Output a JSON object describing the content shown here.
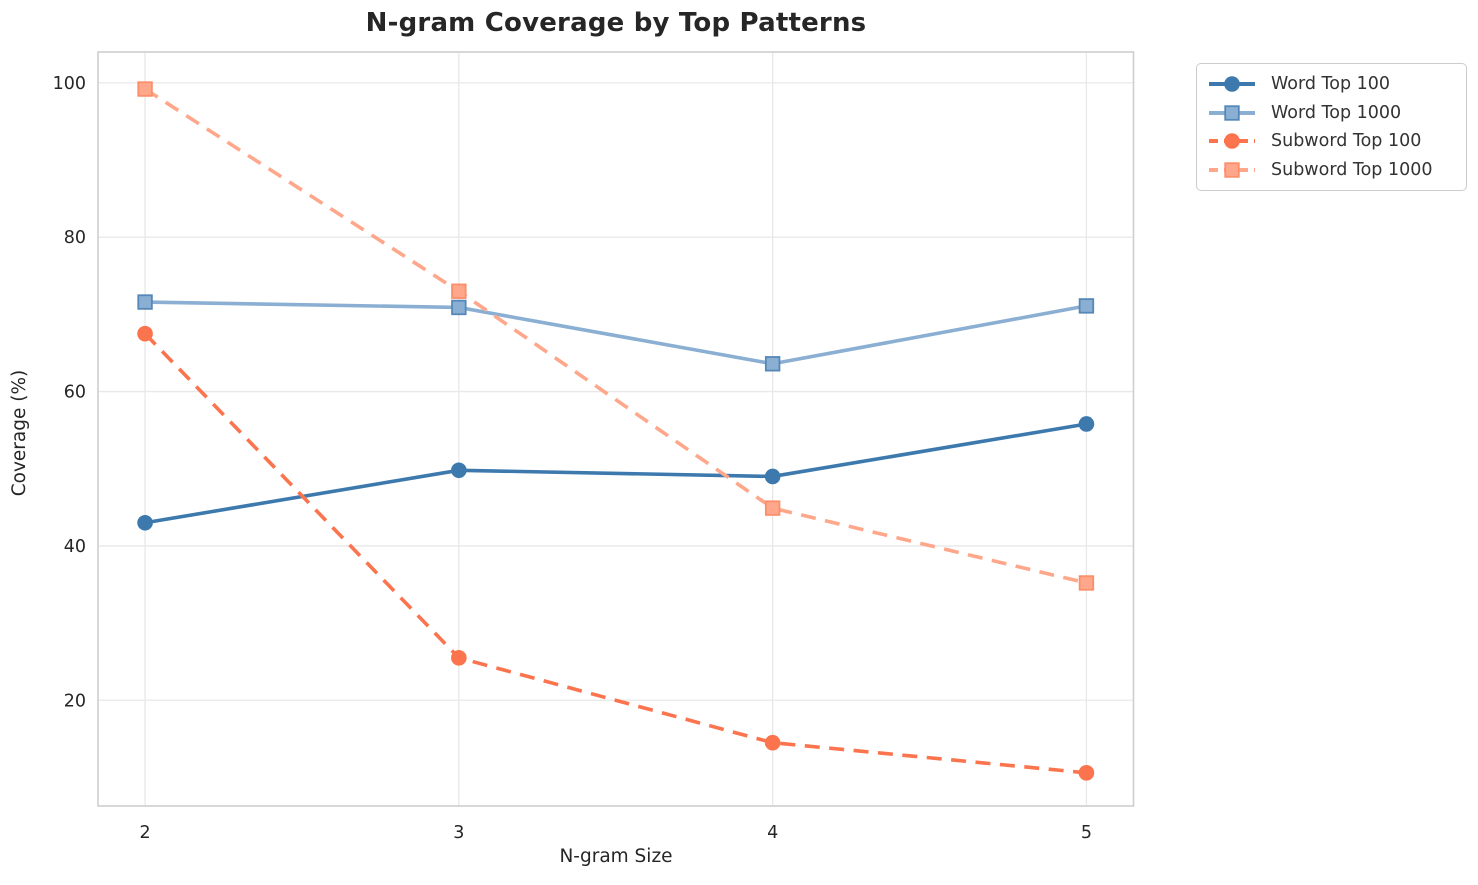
{
  "chart_data": {
    "type": "line",
    "title": "N-gram Coverage by Top Patterns",
    "xlabel": "N-gram Size",
    "ylabel": "Coverage (%)",
    "x": [
      2,
      3,
      4,
      5
    ],
    "x_tick_labels": [
      "2",
      "3",
      "4",
      "5"
    ],
    "y_ticks": [
      20,
      40,
      60,
      80,
      100
    ],
    "y_tick_labels": [
      "20",
      "40",
      "60",
      "80",
      "100"
    ],
    "xlim": [
      1.85,
      5.15
    ],
    "ylim": [
      6.3,
      104.0
    ],
    "grid": "on",
    "legend_position": "outside-upper-right",
    "series": [
      {
        "name": "Word Top 100",
        "values": [
          43.0,
          49.8,
          49.0,
          55.8
        ],
        "color": "#3d79ad",
        "marker_fill": "#3d79ad",
        "marker_edge": "#3d79ad",
        "line_style": "solid",
        "marker": "circle"
      },
      {
        "name": "Word Top 1000",
        "values": [
          71.6,
          70.9,
          63.6,
          71.1
        ],
        "color": "#8aafd2",
        "marker_fill": "#8aafd2",
        "marker_edge": "#5588b8",
        "line_style": "solid",
        "marker": "square"
      },
      {
        "name": "Subword Top 100",
        "values": [
          67.5,
          25.5,
          14.5,
          10.6
        ],
        "color": "#fb744d",
        "marker_fill": "#fb744d",
        "marker_edge": "#fb744d",
        "line_style": "dashed",
        "marker": "circle"
      },
      {
        "name": "Subword Top 1000",
        "values": [
          99.2,
          73.0,
          44.9,
          35.2
        ],
        "color": "#ffa78b",
        "marker_fill": "#ffa78b",
        "marker_edge": "#fc8e69",
        "line_style": "dashed",
        "marker": "square"
      }
    ],
    "style": {
      "grid_color": "#e8e8e8",
      "spine_color": "#cfcfcf",
      "tick_label_color": "#262626",
      "background": "#ffffff"
    }
  }
}
